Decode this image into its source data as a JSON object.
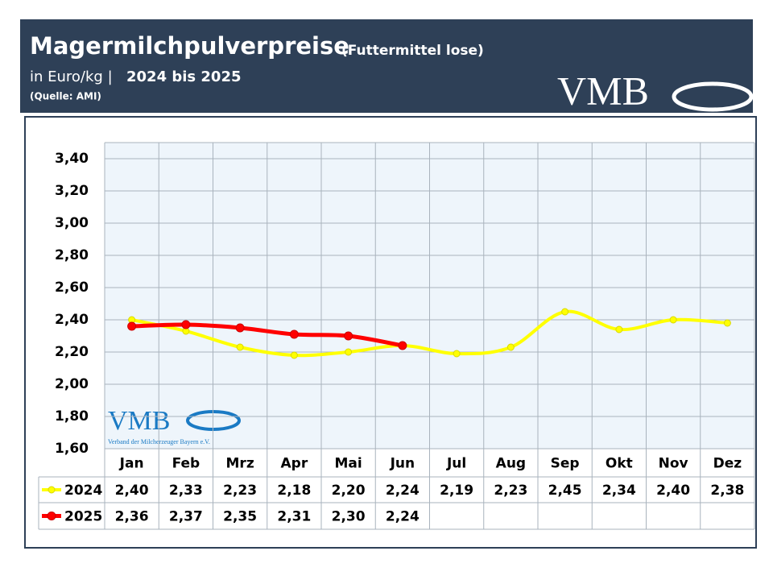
{
  "chart_data": {
    "type": "line",
    "title": "Magermilchpulverpreise",
    "title_note": "(Futtermittel lose)",
    "subtitle": "in Euro/kg |",
    "period": "2024 bis 2025",
    "source": "(Quelle: AMI)",
    "logo": "VMB",
    "logo_caption": "Verband der Milcherzeuger Bayern e.V.",
    "categories": [
      "Jan",
      "Feb",
      "Mrz",
      "Apr",
      "Mai",
      "Jun",
      "Jul",
      "Aug",
      "Sep",
      "Okt",
      "Nov",
      "Dez"
    ],
    "series": [
      {
        "name": "2024",
        "color": "#ffff00",
        "values": [
          2.4,
          2.33,
          2.23,
          2.18,
          2.2,
          2.24,
          2.19,
          2.23,
          2.45,
          2.34,
          2.4,
          2.38
        ],
        "value_labels": [
          "2,40",
          "2,33",
          "2,23",
          "2,18",
          "2,20",
          "2,24",
          "2,19",
          "2,23",
          "2,45",
          "2,34",
          "2,40",
          "2,38"
        ]
      },
      {
        "name": "2025",
        "color": "#ff0000",
        "values": [
          2.36,
          2.37,
          2.35,
          2.31,
          2.3,
          2.24,
          null,
          null,
          null,
          null,
          null,
          null
        ],
        "value_labels": [
          "2,36",
          "2,37",
          "2,35",
          "2,31",
          "2,30",
          "2,24",
          null,
          null,
          null,
          null,
          null,
          null
        ]
      }
    ],
    "ylim": [
      1.6,
      3.5
    ],
    "yticks": [
      {
        "value": 1.6,
        "label": "1,60"
      },
      {
        "value": 1.8,
        "label": "1,80"
      },
      {
        "value": 2.0,
        "label": "2,00"
      },
      {
        "value": 2.2,
        "label": "2,20"
      },
      {
        "value": 2.4,
        "label": "2,40"
      },
      {
        "value": 2.6,
        "label": "2,60"
      },
      {
        "value": 2.8,
        "label": "2,80"
      },
      {
        "value": 3.0,
        "label": "3,00"
      },
      {
        "value": 3.2,
        "label": "3,20"
      },
      {
        "value": 3.4,
        "label": "3,40"
      }
    ],
    "grid": true
  }
}
